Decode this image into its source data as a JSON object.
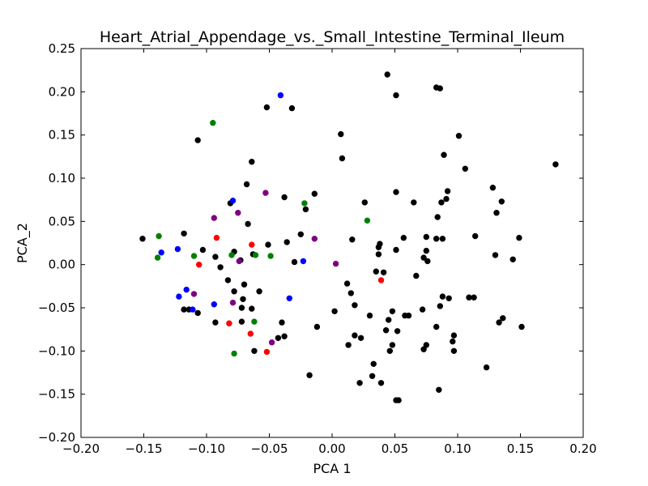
{
  "chart_data": {
    "type": "scatter",
    "title": "Heart_Atrial_Appendage_vs._Small_Intestine_Terminal_Ileum",
    "xlabel": "PCA 1",
    "ylabel": "PCA_2",
    "xlim": [
      -0.2,
      0.2
    ],
    "ylim": [
      -0.2,
      0.25
    ],
    "xticks": [
      -0.2,
      -0.15,
      -0.1,
      -0.05,
      0.0,
      0.05,
      0.1,
      0.15,
      0.2
    ],
    "xtick_labels": [
      "−0.20",
      "−0.15",
      "−0.10",
      "−0.05",
      "0.00",
      "0.05",
      "0.10",
      "0.15",
      "0.20"
    ],
    "yticks": [
      -0.2,
      -0.15,
      -0.1,
      -0.05,
      0.0,
      0.05,
      0.1,
      0.15,
      0.2,
      0.25
    ],
    "ytick_labels": [
      "−0.20",
      "−0.15",
      "−0.10",
      "−0.05",
      "0.00",
      "0.05",
      "0.10",
      "0.15",
      "0.20",
      "0.25"
    ],
    "grid": false,
    "legend": "none",
    "series": [
      {
        "color": "#000000",
        "points": [
          [
            0.044,
            0.22
          ],
          [
            0.083,
            0.205
          ],
          [
            0.086,
            0.204
          ],
          [
            0.051,
            0.196
          ],
          [
            -0.052,
            0.182
          ],
          [
            -0.032,
            0.181
          ],
          [
            0.007,
            0.151
          ],
          [
            0.101,
            0.149
          ],
          [
            -0.107,
            0.144
          ],
          [
            0.089,
            0.127
          ],
          [
            0.008,
            0.123
          ],
          [
            -0.064,
            0.119
          ],
          [
            0.106,
            0.111
          ],
          [
            0.178,
            0.116
          ],
          [
            -0.068,
            0.093
          ],
          [
            0.128,
            0.089
          ],
          [
            0.092,
            0.085
          ],
          [
            0.051,
            0.084
          ],
          [
            -0.014,
            0.082
          ],
          [
            -0.038,
            0.078
          ],
          [
            0.026,
            0.072
          ],
          [
            0.065,
            0.072
          ],
          [
            0.087,
            0.072
          ],
          [
            0.135,
            0.073
          ],
          [
            0.091,
            0.076
          ],
          [
            -0.081,
            0.071
          ],
          [
            -0.021,
            0.064
          ],
          [
            0.131,
            0.06
          ],
          [
            0.084,
            0.055
          ],
          [
            -0.067,
            0.047
          ],
          [
            -0.118,
            0.036
          ],
          [
            -0.025,
            0.035
          ],
          [
            -0.036,
            0.026
          ],
          [
            0.016,
            0.029
          ],
          [
            0.038,
            0.024
          ],
          [
            0.037,
            0.02
          ],
          [
            0.057,
            0.031
          ],
          [
            0.075,
            0.032
          ],
          [
            0.083,
            0.03
          ],
          [
            0.088,
            0.03
          ],
          [
            0.114,
            0.033
          ],
          [
            0.149,
            0.031
          ],
          [
            -0.151,
            0.03
          ],
          [
            -0.051,
            0.023
          ],
          [
            -0.103,
            0.017
          ],
          [
            -0.078,
            0.015
          ],
          [
            -0.063,
            0.012
          ],
          [
            0.051,
            0.017
          ],
          [
            0.037,
            0.012
          ],
          [
            0.075,
            0.016
          ],
          [
            0.073,
            0.008
          ],
          [
            0.076,
            0.004
          ],
          [
            0.13,
            0.011
          ],
          [
            0.144,
            0.006
          ],
          [
            -0.093,
            0.009
          ],
          [
            -0.03,
            0.003
          ],
          [
            -0.073,
            0.005
          ],
          [
            -0.089,
            -0.003
          ],
          [
            0.035,
            -0.008
          ],
          [
            0.041,
            -0.009
          ],
          [
            0.067,
            -0.013
          ],
          [
            -0.083,
            -0.018
          ],
          [
            -0.07,
            -0.023
          ],
          [
            -0.058,
            -0.031
          ],
          [
            -0.078,
            -0.031
          ],
          [
            0.012,
            -0.022
          ],
          [
            0.015,
            -0.033
          ],
          [
            0.088,
            -0.037
          ],
          [
            0.093,
            -0.039
          ],
          [
            0.109,
            -0.038
          ],
          [
            0.113,
            -0.038
          ],
          [
            -0.071,
            -0.04
          ],
          [
            -0.118,
            -0.052
          ],
          [
            -0.114,
            -0.052
          ],
          [
            -0.107,
            -0.056
          ],
          [
            -0.072,
            -0.05
          ],
          [
            -0.064,
            -0.051
          ],
          [
            0.018,
            -0.047
          ],
          [
            0.002,
            -0.054
          ],
          [
            0.048,
            -0.054
          ],
          [
            0.058,
            -0.059
          ],
          [
            0.061,
            -0.059
          ],
          [
            0.072,
            -0.052
          ],
          [
            0.086,
            -0.048
          ],
          [
            0.136,
            -0.062
          ],
          [
            0.133,
            -0.067
          ],
          [
            0.03,
            -0.059
          ],
          [
            0.045,
            -0.064
          ],
          [
            -0.093,
            -0.067
          ],
          [
            -0.072,
            -0.066
          ],
          [
            -0.04,
            -0.067
          ],
          [
            -0.012,
            -0.072
          ],
          [
            0.043,
            -0.076
          ],
          [
            0.052,
            -0.077
          ],
          [
            0.083,
            -0.072
          ],
          [
            0.151,
            -0.072
          ],
          [
            -0.038,
            -0.083
          ],
          [
            -0.043,
            -0.085
          ],
          [
            0.018,
            -0.082
          ],
          [
            0.023,
            -0.085
          ],
          [
            0.097,
            -0.082
          ],
          [
            0.013,
            -0.093
          ],
          [
            0.048,
            -0.093
          ],
          [
            0.075,
            -0.093
          ],
          [
            0.073,
            -0.098
          ],
          [
            0.096,
            -0.089
          ],
          [
            0.097,
            -0.1
          ],
          [
            0.046,
            -0.1
          ],
          [
            -0.062,
            -0.1
          ],
          [
            -0.018,
            -0.128
          ],
          [
            0.033,
            -0.115
          ],
          [
            0.032,
            -0.129
          ],
          [
            0.039,
            -0.137
          ],
          [
            0.022,
            -0.137
          ],
          [
            0.123,
            -0.119
          ],
          [
            0.085,
            -0.145
          ],
          [
            0.051,
            -0.157
          ],
          [
            0.053,
            -0.157
          ]
        ]
      },
      {
        "color": "#0000ff",
        "points": [
          [
            -0.041,
            0.196
          ],
          [
            -0.079,
            0.074
          ],
          [
            -0.136,
            0.014
          ],
          [
            -0.123,
            0.018
          ],
          [
            -0.023,
            0.004
          ],
          [
            -0.116,
            -0.029
          ],
          [
            -0.122,
            -0.037
          ],
          [
            -0.111,
            -0.052
          ],
          [
            -0.094,
            -0.046
          ],
          [
            -0.034,
            -0.039
          ]
        ]
      },
      {
        "color": "#008000",
        "points": [
          [
            -0.095,
            0.164
          ],
          [
            -0.022,
            0.071
          ],
          [
            0.028,
            0.051
          ],
          [
            -0.138,
            0.033
          ],
          [
            -0.139,
            0.008
          ],
          [
            -0.11,
            0.01
          ],
          [
            -0.08,
            0.011
          ],
          [
            -0.061,
            0.011
          ],
          [
            -0.049,
            0.01
          ],
          [
            -0.062,
            -0.066
          ],
          [
            -0.078,
            -0.103
          ]
        ]
      },
      {
        "color": "#ff0000",
        "points": [
          [
            -0.092,
            0.031
          ],
          [
            -0.064,
            0.023
          ],
          [
            -0.106,
            0.0
          ],
          [
            0.039,
            -0.018
          ],
          [
            -0.082,
            -0.068
          ],
          [
            -0.065,
            -0.08
          ],
          [
            -0.052,
            -0.101
          ]
        ]
      },
      {
        "color": "#800080",
        "points": [
          [
            -0.053,
            0.083
          ],
          [
            -0.075,
            0.06
          ],
          [
            -0.094,
            0.054
          ],
          [
            -0.014,
            0.03
          ],
          [
            -0.074,
            0.004
          ],
          [
            0.003,
            0.001
          ],
          [
            -0.11,
            -0.034
          ],
          [
            -0.079,
            -0.044
          ],
          [
            -0.048,
            -0.09
          ]
        ]
      }
    ]
  }
}
